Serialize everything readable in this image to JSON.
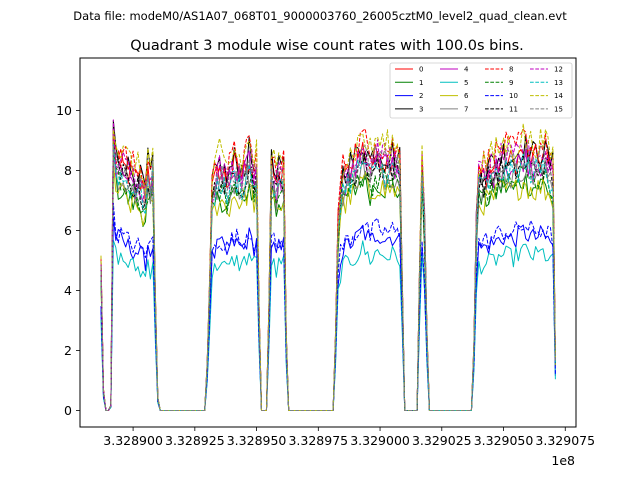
{
  "chart_data": {
    "type": "line",
    "suptitle": "Data file: modeM0/AS1A07_068T01_9000003760_26005cztM0_level2_quad_clean.evt",
    "title": "Quadrant 3 module wise count rates with 100.0s bins.",
    "xlabel": "",
    "ylabel": "",
    "offset_label": "1e8",
    "xlim": [
      3.3288785,
      3.32907935
    ],
    "ylim": [
      -0.55,
      11.75
    ],
    "x_ticks": [
      3.3289,
      3.328925,
      3.32895,
      3.328975,
      3.329,
      3.329025,
      3.32905,
      3.329075
    ],
    "x_tick_labels": [
      "3.328900",
      "3.328925",
      "3.328950",
      "3.328975",
      "3.329000",
      "3.329025",
      "3.329050",
      "3.329075"
    ],
    "y_ticks": [
      0,
      2,
      4,
      6,
      8,
      10
    ],
    "y_tick_labels": [
      "0",
      "2",
      "4",
      "6",
      "8",
      "10"
    ],
    "legend_location": "upper right",
    "time_bins": {
      "start": 3.328887,
      "step": 1e-06,
      "count": 185
    },
    "segments": [
      {
        "start_bin": 0,
        "end_bin": 23,
        "shape": [
          [
            0,
            0.58
          ],
          [
            1,
            0.08
          ],
          [
            2,
            0.0
          ],
          [
            3,
            0.0
          ],
          [
            4,
            0.02
          ],
          [
            5,
            1.1
          ],
          [
            6,
            1.0
          ],
          [
            11,
            0.94
          ],
          [
            15,
            0.91
          ],
          [
            18,
            0.86
          ],
          [
            19,
            0.96
          ],
          [
            20,
            0.9
          ],
          [
            21,
            0.97
          ],
          [
            22,
            0.45
          ],
          [
            23,
            0.05
          ]
        ]
      },
      {
        "start_bin": 24,
        "end_bin": 42,
        "value": 0
      },
      {
        "start_bin": 43,
        "end_bin": 64,
        "shape": [
          [
            0,
            0.18
          ],
          [
            1,
            0.5
          ],
          [
            2,
            0.87
          ],
          [
            3,
            0.9
          ],
          [
            5,
            0.96
          ],
          [
            8,
            0.9
          ],
          [
            11,
            0.97
          ],
          [
            14,
            0.93
          ],
          [
            17,
            1.0
          ],
          [
            19,
            0.94
          ],
          [
            20,
            0.97
          ],
          [
            21,
            0.4
          ]
        ]
      },
      {
        "start_bin": 65,
        "end_bin": 67,
        "value": 0
      },
      {
        "start_bin": 68,
        "end_bin": 75,
        "shape": [
          [
            0,
            0.4
          ],
          [
            1,
            0.96
          ],
          [
            2,
            0.93
          ],
          [
            3,
            0.88
          ],
          [
            4,
            0.93
          ],
          [
            5,
            0.92
          ],
          [
            6,
            0.95
          ],
          [
            7,
            0.3
          ]
        ]
      },
      {
        "start_bin": 76,
        "end_bin": 94,
        "value": 0
      },
      {
        "start_bin": 95,
        "end_bin": 122,
        "shape": [
          [
            0,
            0.3
          ],
          [
            1,
            0.75
          ],
          [
            2,
            0.88
          ],
          [
            3,
            0.92
          ],
          [
            5,
            0.95
          ],
          [
            8,
            0.98
          ],
          [
            11,
            1.04
          ],
          [
            14,
            0.97
          ],
          [
            17,
            1.02
          ],
          [
            20,
            0.99
          ],
          [
            23,
            1.0
          ],
          [
            26,
            0.97
          ],
          [
            27,
            0.5
          ]
        ]
      },
      {
        "start_bin": 123,
        "end_bin": 128,
        "value": 0
      },
      {
        "start_bin": 129,
        "end_bin": 132,
        "shape": [
          [
            0,
            0.55
          ],
          [
            1,
            0.98
          ],
          [
            2,
            0.75
          ],
          [
            3,
            0.3
          ]
        ]
      },
      {
        "start_bin": 133,
        "end_bin": 150,
        "value": 0
      },
      {
        "start_bin": 151,
        "end_bin": 184,
        "shape": [
          [
            0,
            0.25
          ],
          [
            1,
            0.75
          ],
          [
            2,
            0.93
          ],
          [
            5,
            0.94
          ],
          [
            8,
            0.96
          ],
          [
            12,
            1.0
          ],
          [
            16,
            0.98
          ],
          [
            20,
            1.03
          ],
          [
            24,
            0.99
          ],
          [
            28,
            1.01
          ],
          [
            32,
            0.95
          ],
          [
            33,
            0.2
          ]
        ]
      }
    ],
    "series": [
      {
        "name": "0",
        "color": "#ff0000",
        "dash": "solid",
        "level": 8.4
      },
      {
        "name": "1",
        "color": "#008000",
        "dash": "solid",
        "level": 7.5
      },
      {
        "name": "2",
        "color": "#0000ff",
        "dash": "solid",
        "level": 5.8
      },
      {
        "name": "3",
        "color": "#000000",
        "dash": "solid",
        "level": 8.6
      },
      {
        "name": "4",
        "color": "#bf00bf",
        "dash": "solid",
        "level": 8.2
      },
      {
        "name": "5",
        "color": "#00bfbf",
        "dash": "solid",
        "level": 5.2
      },
      {
        "name": "6",
        "color": "#bfbf00",
        "dash": "solid",
        "level": 7.4
      },
      {
        "name": "7",
        "color": "#808080",
        "dash": "solid",
        "level": 7.9
      },
      {
        "name": "8",
        "color": "#ff0000",
        "dash": "dashed",
        "level": 8.8
      },
      {
        "name": "9",
        "color": "#008000",
        "dash": "dashed",
        "level": 7.7
      },
      {
        "name": "10",
        "color": "#0000ff",
        "dash": "dashed",
        "level": 6.0
      },
      {
        "name": "11",
        "color": "#000000",
        "dash": "dashed",
        "level": 8.1
      },
      {
        "name": "12",
        "color": "#bf00bf",
        "dash": "dashed",
        "level": 8.5
      },
      {
        "name": "13",
        "color": "#00bfbf",
        "dash": "dashed",
        "level": 8.0
      },
      {
        "name": "14",
        "color": "#bfbf00",
        "dash": "dashed",
        "level": 8.9
      },
      {
        "name": "15",
        "color": "#808080",
        "dash": "dashed",
        "level": 8.3
      }
    ]
  }
}
